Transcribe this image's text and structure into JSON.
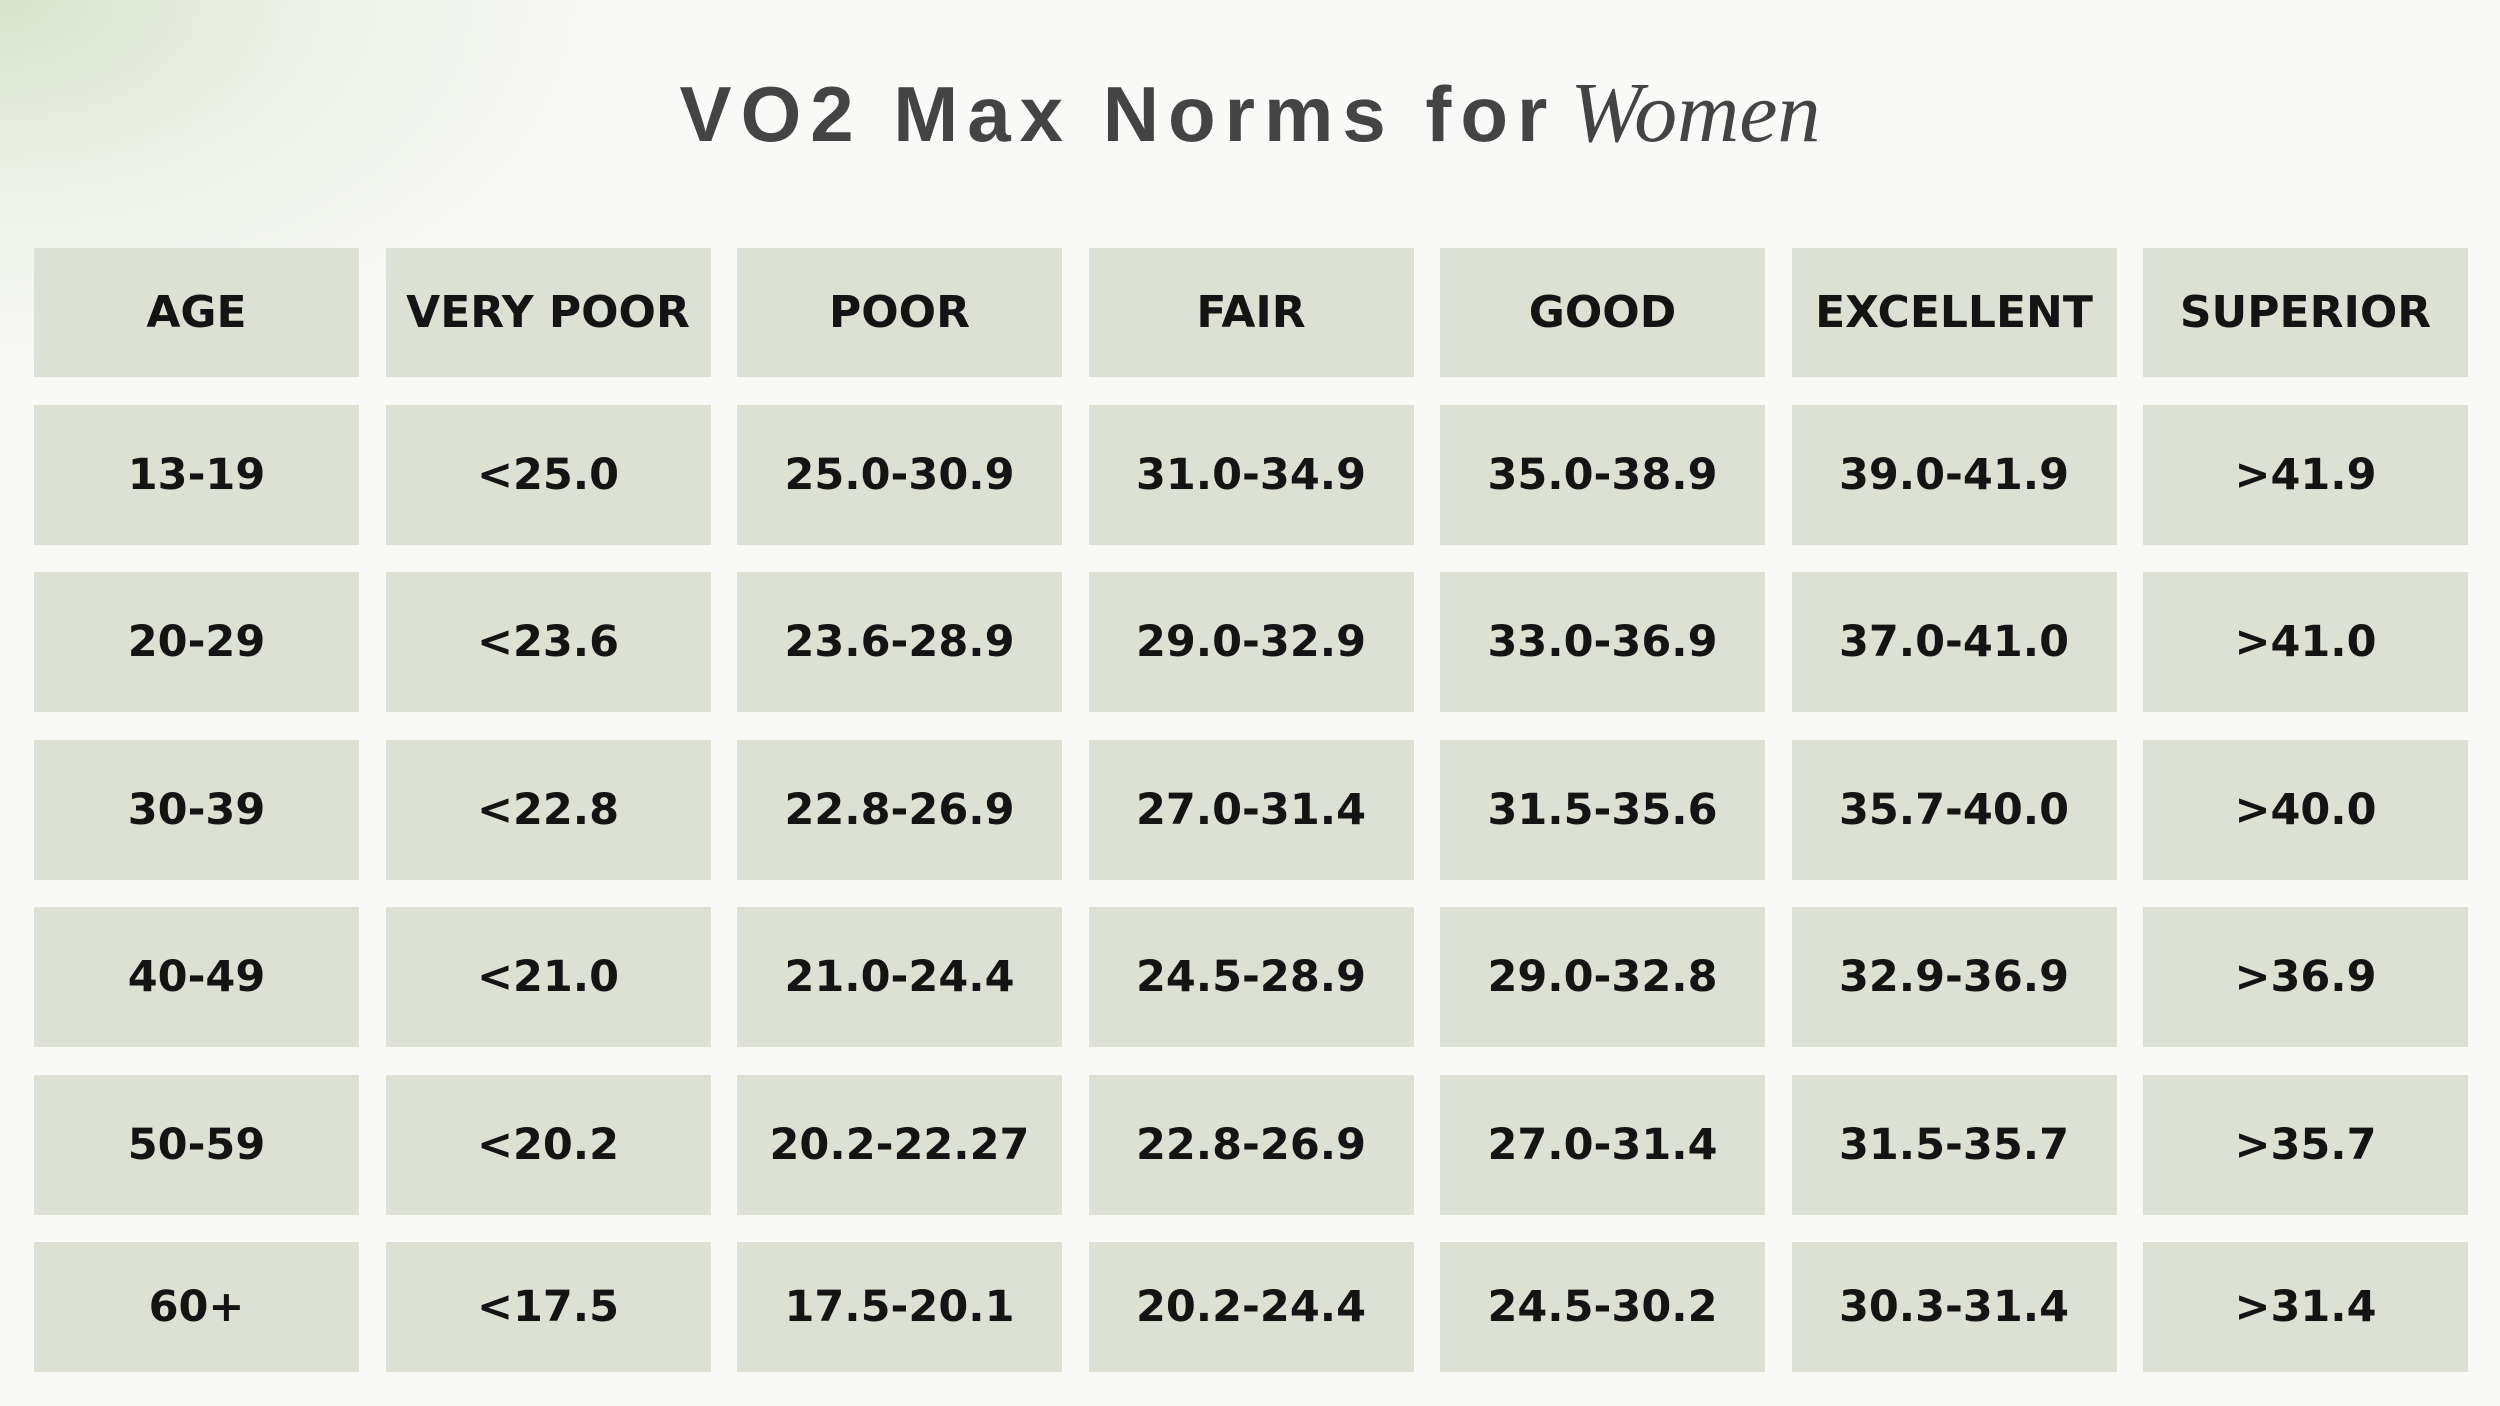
{
  "title": {
    "main": "VO2 Max Norms for",
    "accent": "Women"
  },
  "table": {
    "headers": [
      "AGE",
      "VERY POOR",
      "POOR",
      "FAIR",
      "GOOD",
      "EXCELLENT",
      "SUPERIOR"
    ],
    "rows": [
      [
        "13-19",
        "<25.0",
        "25.0-30.9",
        "31.0-34.9",
        "35.0-38.9",
        "39.0-41.9",
        ">41.9"
      ],
      [
        "20-29",
        "<23.6",
        "23.6-28.9",
        "29.0-32.9",
        "33.0-36.9",
        "37.0-41.0",
        ">41.0"
      ],
      [
        "30-39",
        "<22.8",
        "22.8-26.9",
        "27.0-31.4",
        "31.5-35.6",
        "35.7-40.0",
        ">40.0"
      ],
      [
        "40-49",
        "<21.0",
        "21.0-24.4",
        "24.5-28.9",
        "29.0-32.8",
        "32.9-36.9",
        ">36.9"
      ],
      [
        "50-59",
        "<20.2",
        "20.2-22.27",
        "22.8-26.9",
        "27.0-31.4",
        "31.5-35.7",
        ">35.7"
      ],
      [
        "60+",
        "<17.5",
        "17.5-20.1",
        "20.2-24.4",
        "24.5-30.2",
        "30.3-31.4",
        ">31.4"
      ]
    ]
  },
  "colors": {
    "background": "#f9f9f7",
    "cell": "#dde1d4",
    "title": "#444444",
    "text": "#141414"
  }
}
